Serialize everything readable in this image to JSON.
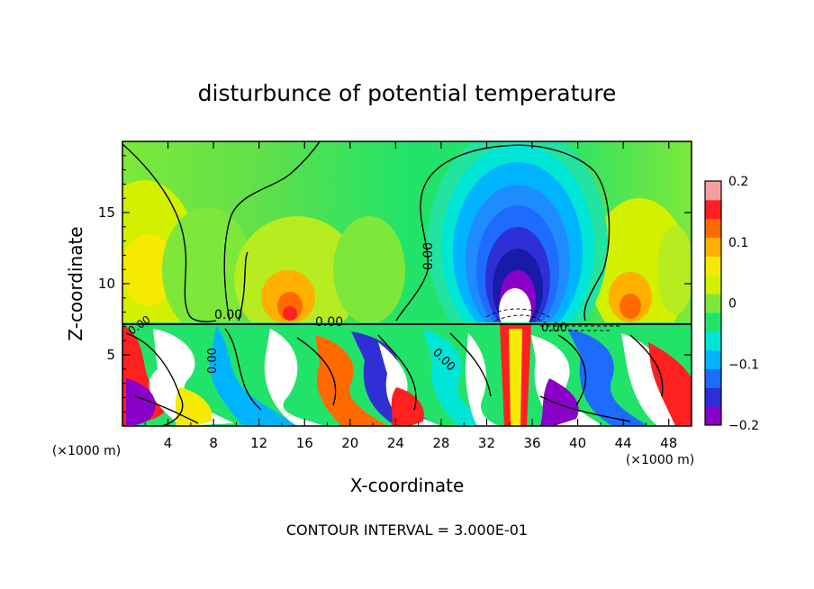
{
  "chart_data": {
    "type": "heatmap",
    "title": "disturbunce of potential temperature",
    "xlabel": "X-coordinate",
    "ylabel": "Z-coordinate",
    "x_unit": "(×1000 m)",
    "y_unit": "(×1000 m)",
    "xlim": [
      0,
      50
    ],
    "ylim": [
      0,
      20
    ],
    "x_ticks": [
      "4",
      "8",
      "12",
      "16",
      "20",
      "24",
      "28",
      "32",
      "36",
      "40",
      "44",
      "48"
    ],
    "y_ticks": [
      "5",
      "10",
      "15"
    ],
    "colorbar": {
      "range": [
        -0.2,
        0.2
      ],
      "tick_labels": [
        "0.2",
        "0.1",
        "0",
        "−0.1",
        "−0.2"
      ],
      "colors": [
        "#8a00c8",
        "#2f2fd6",
        "#1e6cff",
        "#00b4ff",
        "#00e6d6",
        "#22e36a",
        "#7de83a",
        "#d2f000",
        "#f5ea00",
        "#ffb000",
        "#ff6a00",
        "#ff2020",
        "#f4a0a0"
      ]
    },
    "contour_labels": [
      "0.00",
      "0.00",
      "0.00",
      "0.00",
      "0.00",
      "0.00",
      "0.00"
    ],
    "contour_interval_text": "CONTOUR INTERVAL = 3.000E-01",
    "features": [
      {
        "x": 34,
        "z": 12,
        "value": -0.2,
        "note": "strong negative anomaly above tropopause"
      },
      {
        "x": 14,
        "z": 8.5,
        "value": 0.15
      },
      {
        "x": 43,
        "z": 8.5,
        "value": 0.12
      },
      {
        "x": 2,
        "z": 12,
        "value": 0.1
      }
    ]
  }
}
